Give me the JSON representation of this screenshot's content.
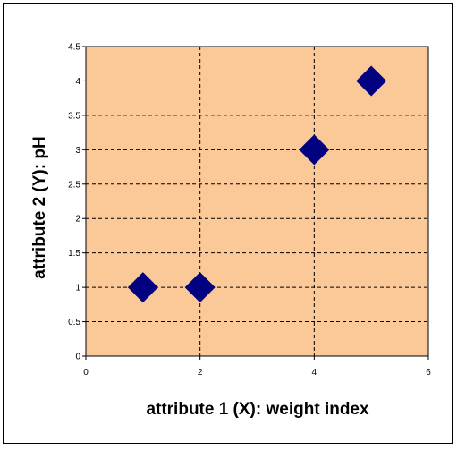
{
  "chart_data": {
    "type": "scatter",
    "title": "",
    "xlabel": "attribute 1 (X): weight index",
    "ylabel": "attribute 2 (Y): pH",
    "xlim": [
      0,
      6
    ],
    "ylim": [
      0,
      4.5
    ],
    "x_ticks": [
      0,
      2,
      4,
      6
    ],
    "y_ticks": [
      0,
      0.5,
      1,
      1.5,
      2,
      2.5,
      3,
      3.5,
      4,
      4.5
    ],
    "x_tick_labels": [
      "0",
      "2",
      "4",
      "6"
    ],
    "y_tick_labels": [
      "0",
      "0.5",
      "1",
      "1.5",
      "2",
      "2.5",
      "3",
      "3.5",
      "4",
      "4.5"
    ],
    "grid": true,
    "legend": "none",
    "marker": "diamond",
    "series": [
      {
        "points": [
          {
            "x": 1,
            "y": 1
          },
          {
            "x": 2,
            "y": 1
          },
          {
            "x": 4,
            "y": 3
          },
          {
            "x": 5,
            "y": 4
          }
        ]
      }
    ],
    "colors": {
      "plot_background": "#FBC898",
      "marker": "#000080",
      "grid": "#000000"
    }
  }
}
